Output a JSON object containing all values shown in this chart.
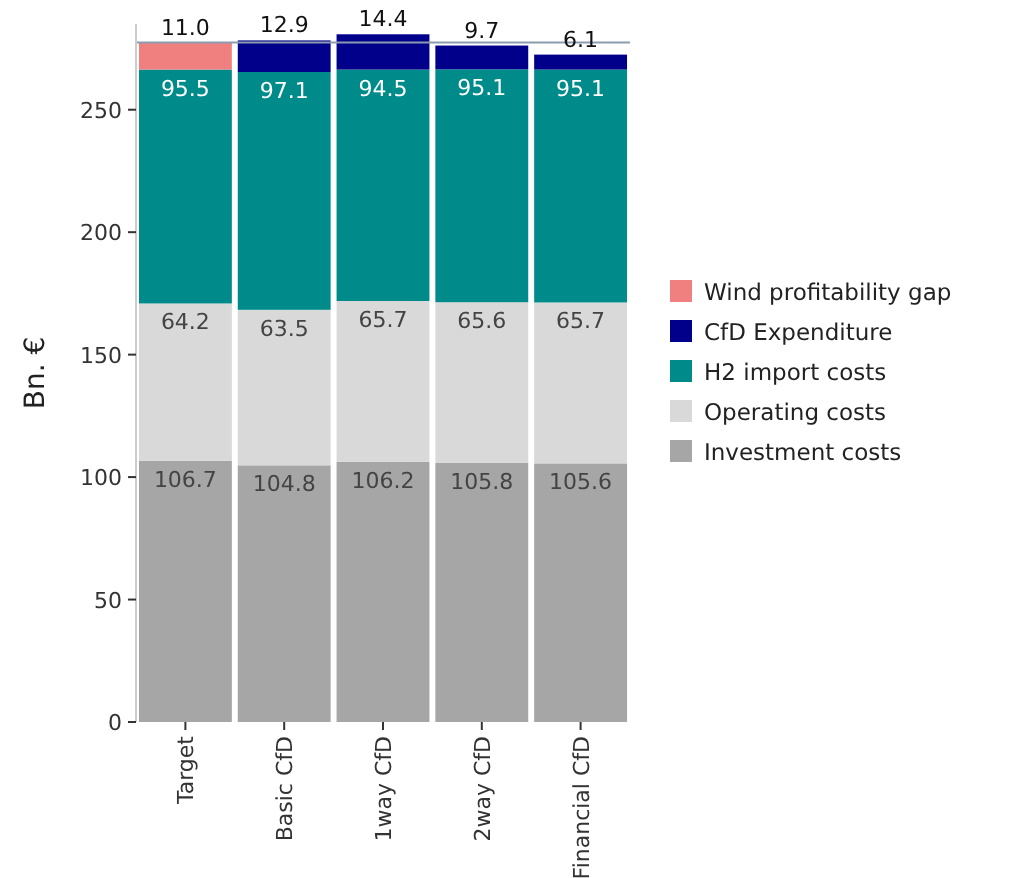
{
  "chart_data": {
    "type": "bar",
    "stacked": true,
    "ylabel": "Bn. €",
    "categories": [
      "Target",
      "Basic CfD",
      "1way CfD",
      "2way CfD",
      "Financial CfD"
    ],
    "series": [
      {
        "name": "Investment costs",
        "color": "#a6a6a6",
        "values": [
          106.7,
          104.8,
          106.2,
          105.8,
          105.6
        ],
        "value_labels": [
          "106.7",
          "104.8",
          "106.2",
          "105.8",
          "105.6"
        ]
      },
      {
        "name": "Operating costs",
        "color": "#d9d9d9",
        "values": [
          64.2,
          63.5,
          65.7,
          65.6,
          65.7
        ],
        "value_labels": [
          "64.2",
          "63.5",
          "65.7",
          "65.6",
          "65.7"
        ]
      },
      {
        "name": "H2 import costs",
        "color": "#008b8b",
        "values": [
          95.5,
          97.1,
          94.5,
          95.1,
          95.1
        ],
        "value_labels": [
          "95.5",
          "97.1",
          "94.5",
          "95.1",
          "95.1"
        ]
      },
      {
        "name": "CfD Expenditure",
        "color": "#00008b",
        "values": [
          null,
          12.9,
          14.4,
          9.7,
          6.1
        ],
        "value_labels": [
          null,
          "12.9",
          "14.4",
          "9.7",
          "6.1"
        ]
      },
      {
        "name": "Wind profitability gap",
        "color": "#f08080",
        "values": [
          11.0,
          null,
          null,
          null,
          null
        ],
        "value_labels": [
          "11.0",
          null,
          null,
          null,
          null
        ]
      }
    ],
    "ylim": [
      0,
      285
    ],
    "yticks": [
      0,
      50,
      100,
      150,
      200,
      250
    ],
    "ref_lines": [
      {
        "axis": "y",
        "value": 277.4,
        "color": "#8c9bb0"
      }
    ],
    "legend": "right"
  }
}
